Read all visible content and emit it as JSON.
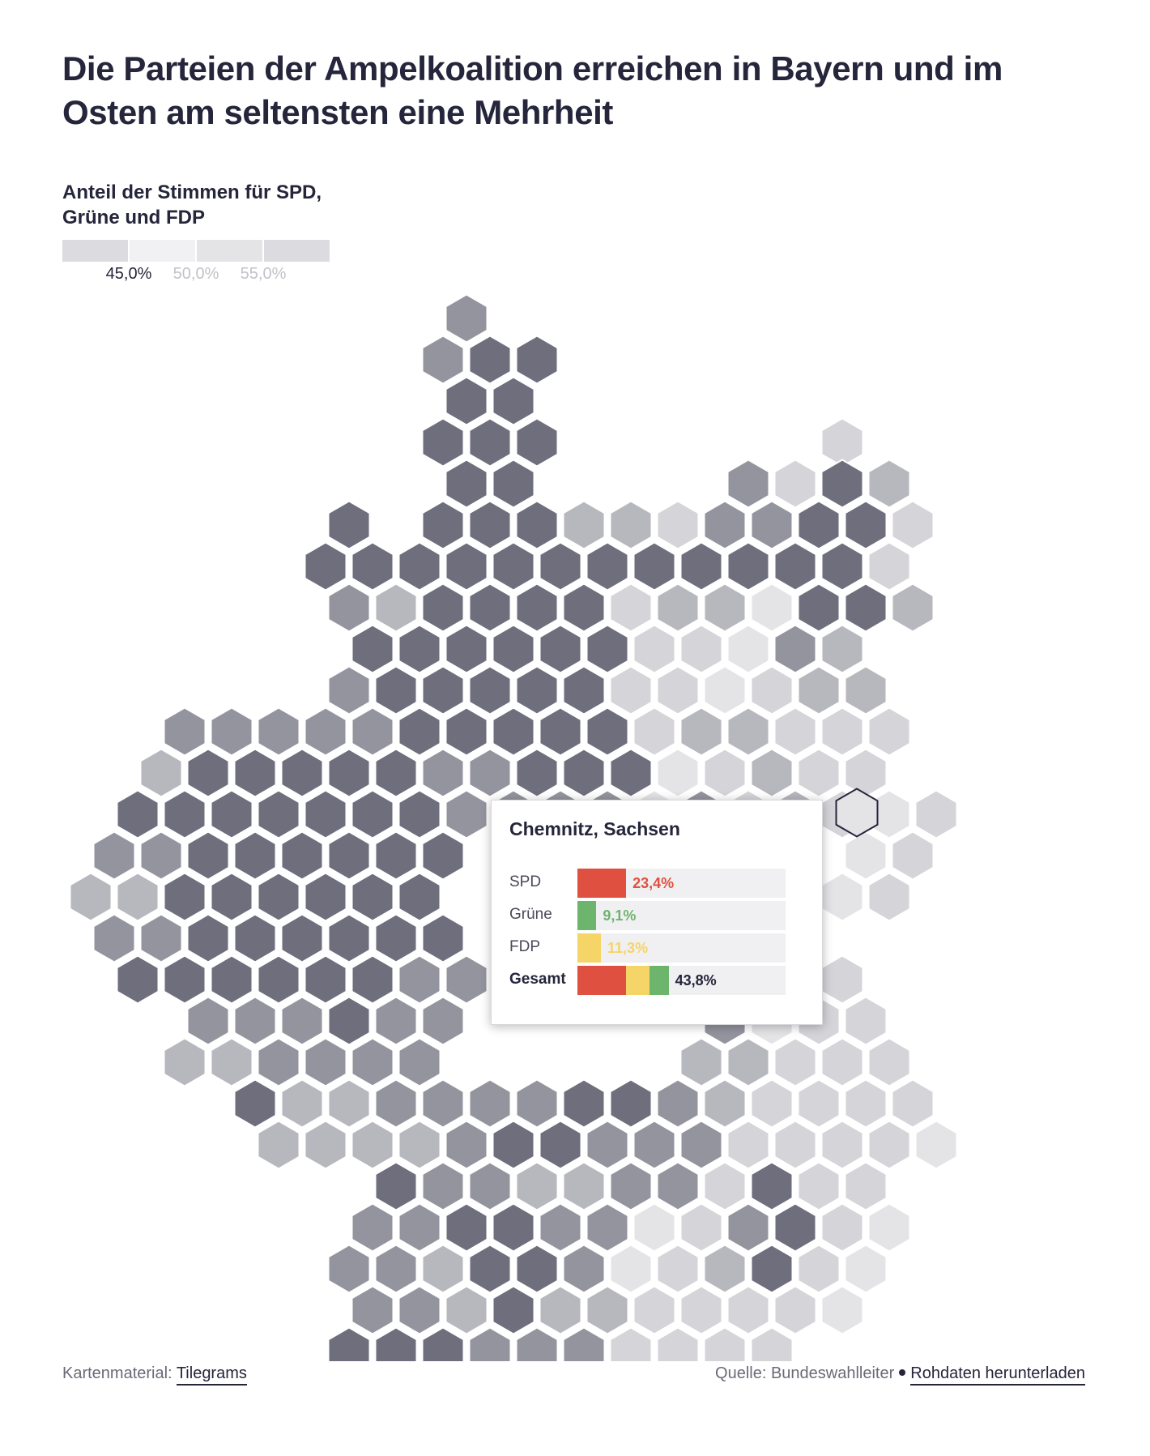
{
  "title": "Die Parteien der Ampelkoalition erreichen in Bayern und im Osten am seltensten eine Mehrheit",
  "legend": {
    "label": "Anteil der Stimmen für SPD, Grüne und FDP",
    "segment_colors": [
      "#dcdce0",
      "#f1f1f3",
      "#e4e4e7",
      "#dcdce0"
    ],
    "ticks": [
      {
        "label": "45,0%",
        "color": "#25253b"
      },
      {
        "label": "50,0%",
        "color": "#c2c2c8"
      },
      {
        "label": "55,0%",
        "color": "#c2c2c8"
      }
    ]
  },
  "map": {
    "shade_colors": [
      "#6e6e7d",
      "#94949f",
      "#b7b7be",
      "#d4d4d9",
      "#e4e4e7"
    ],
    "selected_district": "Chemnitz, Sachsen",
    "selected_stroke": "#25253b"
  },
  "tooltip": {
    "title": "Chemnitz, Sachsen",
    "rows": [
      {
        "label": "SPD",
        "value": "23,4%",
        "share": 23.4,
        "color": "#e05040"
      },
      {
        "label": "Grüne",
        "value": "9,1%",
        "share": 9.1,
        "color": "#6db56d"
      },
      {
        "label": "FDP",
        "value": "11,3%",
        "share": 11.3,
        "color": "#f5d468"
      }
    ],
    "total": {
      "label": "Gesamt",
      "value": "43,8%"
    }
  },
  "footer": {
    "left_prefix": "Kartenmaterial:",
    "left_link": "Tilegrams",
    "right_prefix": "Quelle: Bundeswahlleiter",
    "right_link": "Rohdaten herunterladen"
  }
}
